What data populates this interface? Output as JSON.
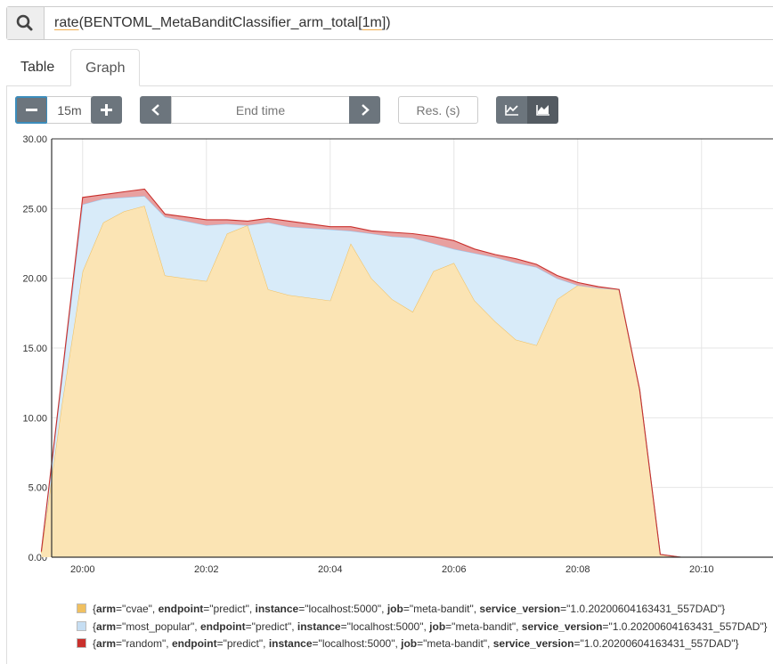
{
  "query": {
    "parts": [
      "rate",
      "(BENTOML_MetaBanditClassifier_arm_total[",
      "1m",
      "])"
    ]
  },
  "tabs": [
    {
      "label": "Table"
    },
    {
      "label": "Graph"
    }
  ],
  "toolbar": {
    "range": "15m",
    "end_time_placeholder": "End time",
    "res_placeholder": "Res. (s)"
  },
  "icons": {
    "search": "search-icon",
    "minus": "minus-icon",
    "plus": "plus-icon",
    "prev": "chevron-left-icon",
    "next": "chevron-right-icon",
    "line": "line-chart-icon",
    "stacked": "stacked-area-icon"
  },
  "chart_data": {
    "type": "area",
    "stacked": true,
    "x_ticks": [
      "20:00",
      "20:02",
      "20:04",
      "20:06",
      "20:08",
      "20:10"
    ],
    "y_ticks": [
      "0.00",
      "5.00",
      "10.00",
      "15.00",
      "20.00",
      "25.00",
      "30.00"
    ],
    "ylim": [
      0,
      30
    ],
    "grid": true,
    "x": [
      "19:59:20",
      "19:59:40",
      "20:00:00",
      "20:00:20",
      "20:00:40",
      "20:01:00",
      "20:01:20",
      "20:01:40",
      "20:02:00",
      "20:02:20",
      "20:02:40",
      "20:03:00",
      "20:03:20",
      "20:03:40",
      "20:04:00",
      "20:04:20",
      "20:04:40",
      "20:05:00",
      "20:05:20",
      "20:05:40",
      "20:06:00",
      "20:06:20",
      "20:06:40",
      "20:07:00",
      "20:07:20",
      "20:07:40",
      "20:08:00",
      "20:08:20",
      "20:08:40",
      "20:09:00",
      "20:09:20",
      "20:09:40",
      "20:10:00",
      "20:10:20",
      "20:10:40"
    ],
    "series": [
      {
        "name": "cvae",
        "color": "#f0c060",
        "fill": "#fbe4b4",
        "values": [
          0.3,
          11.0,
          20.5,
          24.0,
          24.8,
          25.2,
          20.2,
          20.0,
          19.8,
          23.2,
          23.8,
          19.2,
          18.8,
          18.6,
          18.4,
          22.5,
          20.0,
          18.5,
          17.6,
          20.5,
          21.1,
          18.4,
          16.9,
          15.6,
          15.2,
          18.5,
          19.5,
          19.3,
          19.2,
          12.0,
          0.2,
          0,
          0,
          0,
          0
        ]
      },
      {
        "name": "most_popular",
        "color": "#98c8f0",
        "fill": "#d8ebf9",
        "values": [
          0.1,
          1.8,
          4.8,
          1.7,
          1.0,
          0.7,
          4.2,
          4.1,
          4.0,
          0.7,
          0.0,
          4.8,
          4.9,
          5.0,
          5.1,
          0.9,
          3.2,
          4.5,
          5.3,
          2.0,
          1.0,
          3.4,
          4.6,
          5.5,
          5.6,
          1.5,
          0.0,
          0.0,
          0.0,
          0.0,
          0.0,
          0,
          0,
          0,
          0
        ]
      },
      {
        "name": "random",
        "color": "#c9302c",
        "fill": "#e8a0a0",
        "values": [
          0.0,
          0.2,
          0.5,
          0.3,
          0.4,
          0.5,
          0.2,
          0.3,
          0.4,
          0.3,
          0.3,
          0.3,
          0.4,
          0.3,
          0.2,
          0.3,
          0.2,
          0.3,
          0.3,
          0.5,
          0.6,
          0.3,
          0.2,
          0.3,
          0.2,
          0.2,
          0.2,
          0.1,
          0.0,
          0.0,
          0.0,
          0,
          0,
          0,
          0
        ]
      }
    ],
    "legend": [
      {
        "arm": "cvae",
        "endpoint": "predict",
        "instance": "localhost:5000",
        "job": "meta-bandit",
        "service_version": "1.0.20200604163431_557DAD"
      },
      {
        "arm": "most_popular",
        "endpoint": "predict",
        "instance": "localhost:5000",
        "job": "meta-bandit",
        "service_version": "1.0.20200604163431_557DAD"
      },
      {
        "arm": "random",
        "endpoint": "predict",
        "instance": "localhost:5000",
        "job": "meta-bandit",
        "service_version": "1.0.20200604163431_557DAD"
      }
    ]
  }
}
